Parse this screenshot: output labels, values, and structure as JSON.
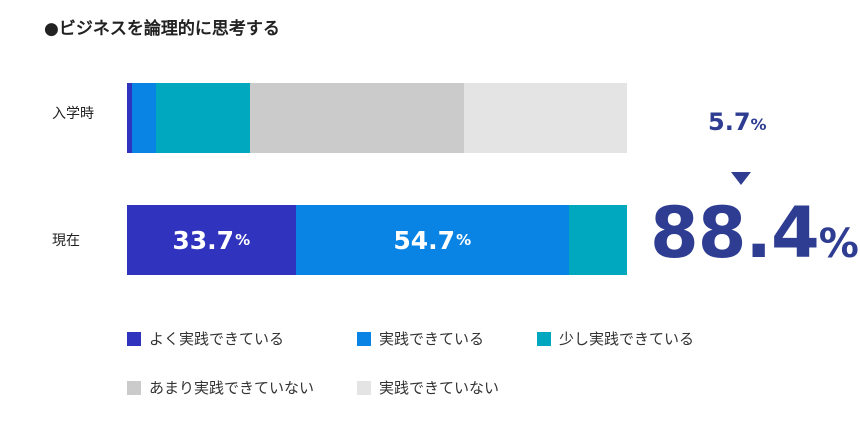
{
  "chart_data": {
    "type": "bar",
    "orientation": "horizontal-stacked",
    "title": "●ビジネスを論理的に思考する",
    "categories": [
      "入学時",
      "現在"
    ],
    "series": [
      {
        "name": "よく実践できている",
        "color": "#3033bd",
        "values": [
          1.0,
          33.7
        ],
        "labels": [
          "",
          "33.7"
        ]
      },
      {
        "name": "実践できている",
        "color": "#0a84e4",
        "values": [
          4.7,
          54.7
        ],
        "labels": [
          "",
          "54.7"
        ]
      },
      {
        "name": "少し実践できている",
        "color": "#00a8bf",
        "values": [
          18.8,
          11.6
        ],
        "labels": [
          "",
          ""
        ]
      },
      {
        "name": "あまり実践できていない",
        "color": "#cbcbcb",
        "values": [
          42.8,
          0
        ],
        "labels": [
          "",
          ""
        ]
      },
      {
        "name": "実践できていない",
        "color": "#e4e4e4",
        "values": [
          32.7,
          0
        ],
        "labels": [
          "",
          ""
        ]
      }
    ],
    "xlim": [
      0,
      100
    ],
    "unit": "%",
    "annotations": {
      "before_total": "5.7",
      "after_total": "88.4",
      "unit": "%"
    },
    "legend_placement": "bottom"
  }
}
